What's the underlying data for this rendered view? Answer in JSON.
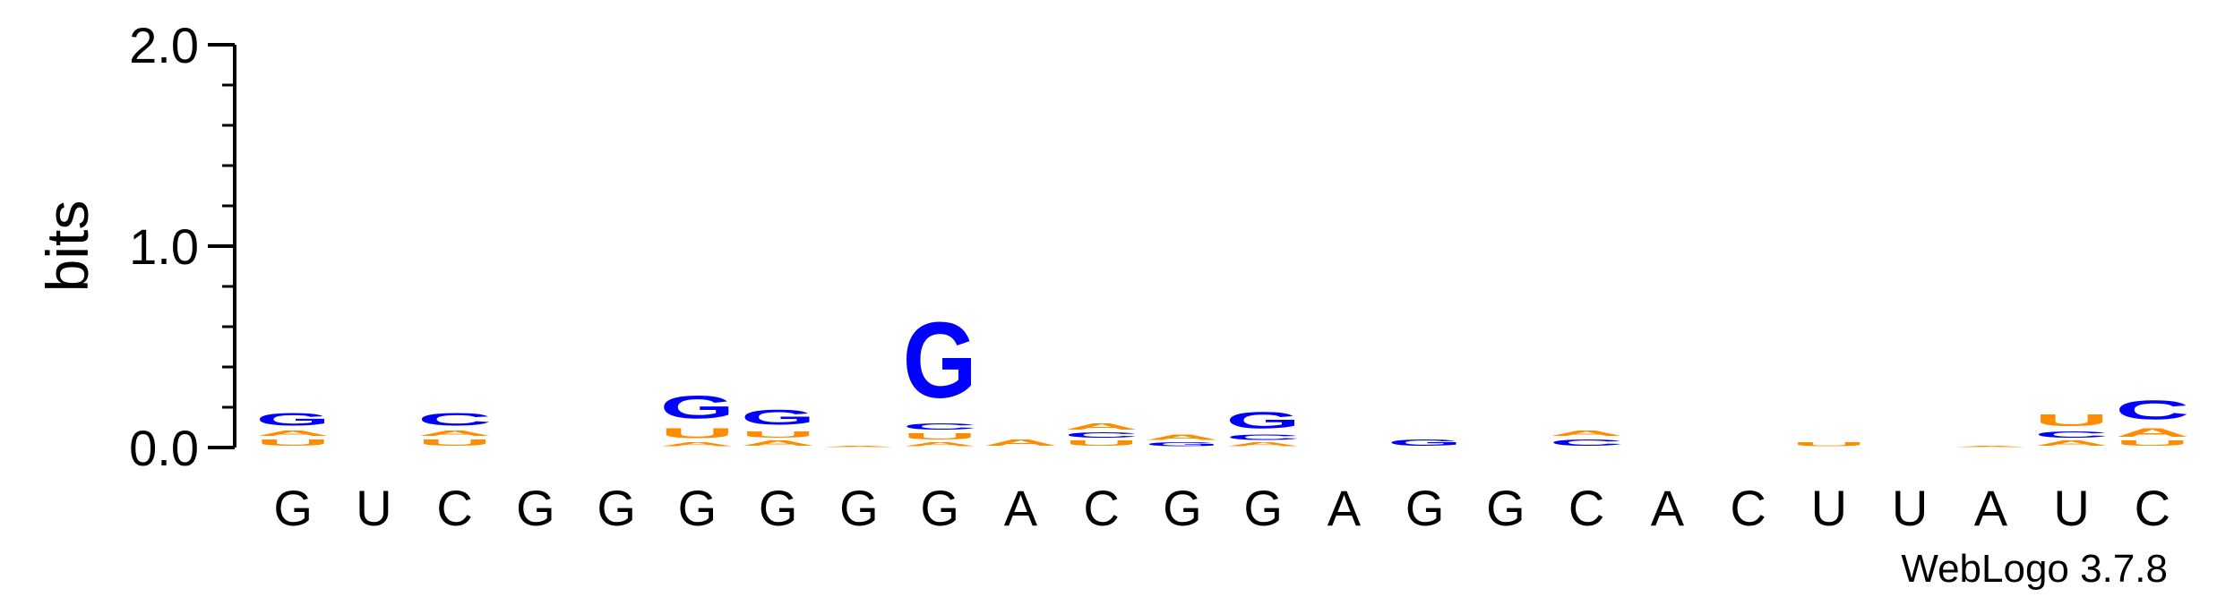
{
  "chart_data": {
    "type": "sequence-logo",
    "ylabel": "bits",
    "ylim": [
      0,
      2.0
    ],
    "yticks": [
      "0.0",
      "1.0",
      "2.0"
    ],
    "categories": [
      "G",
      "U",
      "C",
      "G",
      "G",
      "G",
      "G",
      "G",
      "G",
      "A",
      "C",
      "G",
      "G",
      "A",
      "G",
      "G",
      "C",
      "A",
      "C",
      "U",
      "U",
      "A",
      "U",
      "C"
    ],
    "colors": {
      "G": "#0000ff",
      "C": "#0000ff",
      "A": "#ff8c00",
      "U": "#ff8c00"
    },
    "stacks": [
      [
        [
          "U",
          0.05
        ],
        [
          "A",
          0.04
        ],
        [
          "G",
          0.1
        ]
      ],
      [],
      [
        [
          "U",
          0.05
        ],
        [
          "A",
          0.04
        ],
        [
          "C",
          0.1
        ]
      ],
      [],
      [],
      [
        [
          "A",
          0.03
        ],
        [
          "U",
          0.08
        ],
        [
          "G",
          0.18
        ]
      ],
      [
        [
          "A",
          0.04
        ],
        [
          "U",
          0.05
        ],
        [
          "G",
          0.12
        ]
      ],
      [
        [
          "A",
          0.01
        ]
      ],
      [
        [
          "A",
          0.03
        ],
        [
          "U",
          0.05
        ],
        [
          "C",
          0.05
        ],
        [
          "G",
          0.6
        ]
      ],
      [
        [
          "A",
          0.05
        ]
      ],
      [
        [
          "U",
          0.04
        ],
        [
          "C",
          0.04
        ],
        [
          "A",
          0.05
        ]
      ],
      [
        [
          "G",
          0.03
        ],
        [
          "A",
          0.04
        ]
      ],
      [
        [
          "A",
          0.03
        ],
        [
          "C",
          0.04
        ],
        [
          "G",
          0.13
        ]
      ],
      [],
      [
        [
          "G",
          0.05
        ]
      ],
      [],
      [
        [
          "C",
          0.05
        ],
        [
          "A",
          0.04
        ]
      ],
      [],
      [],
      [
        [
          "U",
          0.03
        ]
      ],
      [],
      [
        [
          "A",
          0.01
        ]
      ],
      [
        [
          "A",
          0.04
        ],
        [
          "C",
          0.05
        ],
        [
          "U",
          0.09
        ]
      ],
      [
        [
          "U",
          0.04
        ],
        [
          "A",
          0.07
        ],
        [
          "C",
          0.15
        ]
      ]
    ],
    "footer": "WebLogo 3.7.8"
  }
}
